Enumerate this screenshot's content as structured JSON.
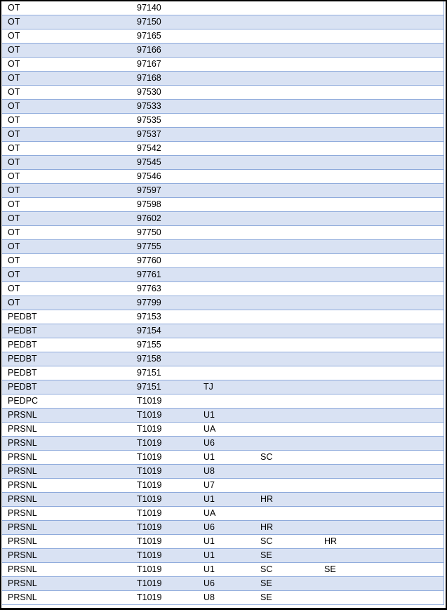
{
  "colors": {
    "band": "#d9e2f3",
    "border": "#8eaadb"
  },
  "rows": [
    [
      "OT",
      "97140",
      "",
      "",
      ""
    ],
    [
      "OT",
      "97150",
      "",
      "",
      ""
    ],
    [
      "OT",
      "97165",
      "",
      "",
      ""
    ],
    [
      "OT",
      "97166",
      "",
      "",
      ""
    ],
    [
      "OT",
      "97167",
      "",
      "",
      ""
    ],
    [
      "OT",
      "97168",
      "",
      "",
      ""
    ],
    [
      "OT",
      "97530",
      "",
      "",
      ""
    ],
    [
      "OT",
      "97533",
      "",
      "",
      ""
    ],
    [
      "OT",
      "97535",
      "",
      "",
      ""
    ],
    [
      "OT",
      "97537",
      "",
      "",
      ""
    ],
    [
      "OT",
      "97542",
      "",
      "",
      ""
    ],
    [
      "OT",
      "97545",
      "",
      "",
      ""
    ],
    [
      "OT",
      "97546",
      "",
      "",
      ""
    ],
    [
      "OT",
      "97597",
      "",
      "",
      ""
    ],
    [
      "OT",
      "97598",
      "",
      "",
      ""
    ],
    [
      "OT",
      "97602",
      "",
      "",
      ""
    ],
    [
      "OT",
      "97750",
      "",
      "",
      ""
    ],
    [
      "OT",
      "97755",
      "",
      "",
      ""
    ],
    [
      "OT",
      "97760",
      "",
      "",
      ""
    ],
    [
      "OT",
      "97761",
      "",
      "",
      ""
    ],
    [
      "OT",
      "97763",
      "",
      "",
      ""
    ],
    [
      "OT",
      "97799",
      "",
      "",
      ""
    ],
    [
      "PEDBT",
      "97153",
      "",
      "",
      ""
    ],
    [
      "PEDBT",
      "97154",
      "",
      "",
      ""
    ],
    [
      "PEDBT",
      "97155",
      "",
      "",
      ""
    ],
    [
      "PEDBT",
      "97158",
      "",
      "",
      ""
    ],
    [
      "PEDBT",
      "97151",
      "",
      "",
      ""
    ],
    [
      "PEDBT",
      "97151",
      "TJ",
      "",
      ""
    ],
    [
      "PEDPC",
      "T1019",
      "",
      "",
      ""
    ],
    [
      "PRSNL",
      "T1019",
      "U1",
      "",
      ""
    ],
    [
      "PRSNL",
      "T1019",
      "UA",
      "",
      ""
    ],
    [
      "PRSNL",
      "T1019",
      "U6",
      "",
      ""
    ],
    [
      "PRSNL",
      "T1019",
      "U1",
      "SC",
      ""
    ],
    [
      "PRSNL",
      "T1019",
      "U8",
      "",
      ""
    ],
    [
      "PRSNL",
      "T1019",
      "U7",
      "",
      ""
    ],
    [
      "PRSNL",
      "T1019",
      "U1",
      "HR",
      ""
    ],
    [
      "PRSNL",
      "T1019",
      "UA",
      "",
      ""
    ],
    [
      "PRSNL",
      "T1019",
      "U6",
      "HR",
      ""
    ],
    [
      "PRSNL",
      "T1019",
      "U1",
      "SC",
      "HR"
    ],
    [
      "PRSNL",
      "T1019",
      "U1",
      "SE",
      ""
    ],
    [
      "PRSNL",
      "T1019",
      "U1",
      "SC",
      "SE"
    ],
    [
      "PRSNL",
      "T1019",
      "U6",
      "SE",
      ""
    ],
    [
      "PRSNL",
      "T1019",
      "U8",
      "SE",
      ""
    ]
  ]
}
